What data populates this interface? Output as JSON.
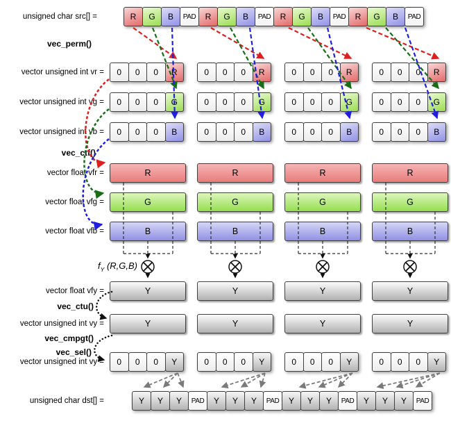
{
  "labels": {
    "src": "unsigned char src[] =",
    "vec_perm": "vec_perm()",
    "vr": "vector unsigned int vr =",
    "vg": "vector unsigned int vg =",
    "vb": "vector unsigned int vb =",
    "vec_ctf": "vec_ctf()",
    "vfr": "vector float vfr =",
    "vfg": "vector float vfg =",
    "vfb": "vector float vfb =",
    "fy_f": "f",
    "fy_sub": "Y",
    "fy_args": "(R,G,B)",
    "vfy": "vector float vfy =",
    "vec_ctu": "vec_ctu()",
    "vy": "vector unsigned int vy =",
    "vec_cmpgt": "vec_cmpgt()",
    "vec_sel": "vec_sel()",
    "vy2": "vector unsigned int vy =",
    "dst": "unsigned char dst[] ="
  },
  "vectors": {
    "src_row": [
      "R",
      "G",
      "B",
      "PAD",
      "R",
      "G",
      "B",
      "PAD",
      "R",
      "G",
      "B",
      "PAD",
      "R",
      "G",
      "B",
      "PAD"
    ],
    "vr_groups": [
      [
        "0",
        "0",
        "0",
        "R"
      ],
      [
        "0",
        "0",
        "0",
        "R"
      ],
      [
        "0",
        "0",
        "0",
        "R"
      ],
      [
        "0",
        "0",
        "0",
        "R"
      ]
    ],
    "vg_groups": [
      [
        "0",
        "0",
        "0",
        "G"
      ],
      [
        "0",
        "0",
        "0",
        "G"
      ],
      [
        "0",
        "0",
        "0",
        "G"
      ],
      [
        "0",
        "0",
        "0",
        "G"
      ]
    ],
    "vb_groups": [
      [
        "0",
        "0",
        "0",
        "B"
      ],
      [
        "0",
        "0",
        "0",
        "B"
      ],
      [
        "0",
        "0",
        "0",
        "B"
      ],
      [
        "0",
        "0",
        "0",
        "B"
      ]
    ],
    "vfr_bars": [
      "R",
      "R",
      "R",
      "R"
    ],
    "vfg_bars": [
      "G",
      "G",
      "G",
      "G"
    ],
    "vfb_bars": [
      "B",
      "B",
      "B",
      "B"
    ],
    "vfy_bars": [
      "Y",
      "Y",
      "Y",
      "Y"
    ],
    "vy_bars": [
      "Y",
      "Y",
      "Y",
      "Y"
    ],
    "vy2_groups": [
      [
        "0",
        "0",
        "0",
        "Y"
      ],
      [
        "0",
        "0",
        "0",
        "Y"
      ],
      [
        "0",
        "0",
        "0",
        "Y"
      ],
      [
        "0",
        "0",
        "0",
        "Y"
      ]
    ],
    "dst_row": [
      "Y",
      "Y",
      "Y",
      "PAD",
      "Y",
      "Y",
      "Y",
      "PAD",
      "Y",
      "Y",
      "Y",
      "PAD",
      "Y",
      "Y",
      "Y",
      "PAD"
    ]
  },
  "icons": {
    "multiply": "circled-x"
  },
  "colors": {
    "cell_red": "#e36a6a",
    "cell_green": "#9bdd52",
    "cell_blue": "#9292e6",
    "cell_gray": "#b3b3b3",
    "arrow_red": "#dd1f1f",
    "arrow_green": "#176e17",
    "arrow_blue": "#1f1fdd",
    "arrow_black": "#111111",
    "arrow_gray": "#7a7a7a",
    "bracket": "#2e2e2e"
  }
}
